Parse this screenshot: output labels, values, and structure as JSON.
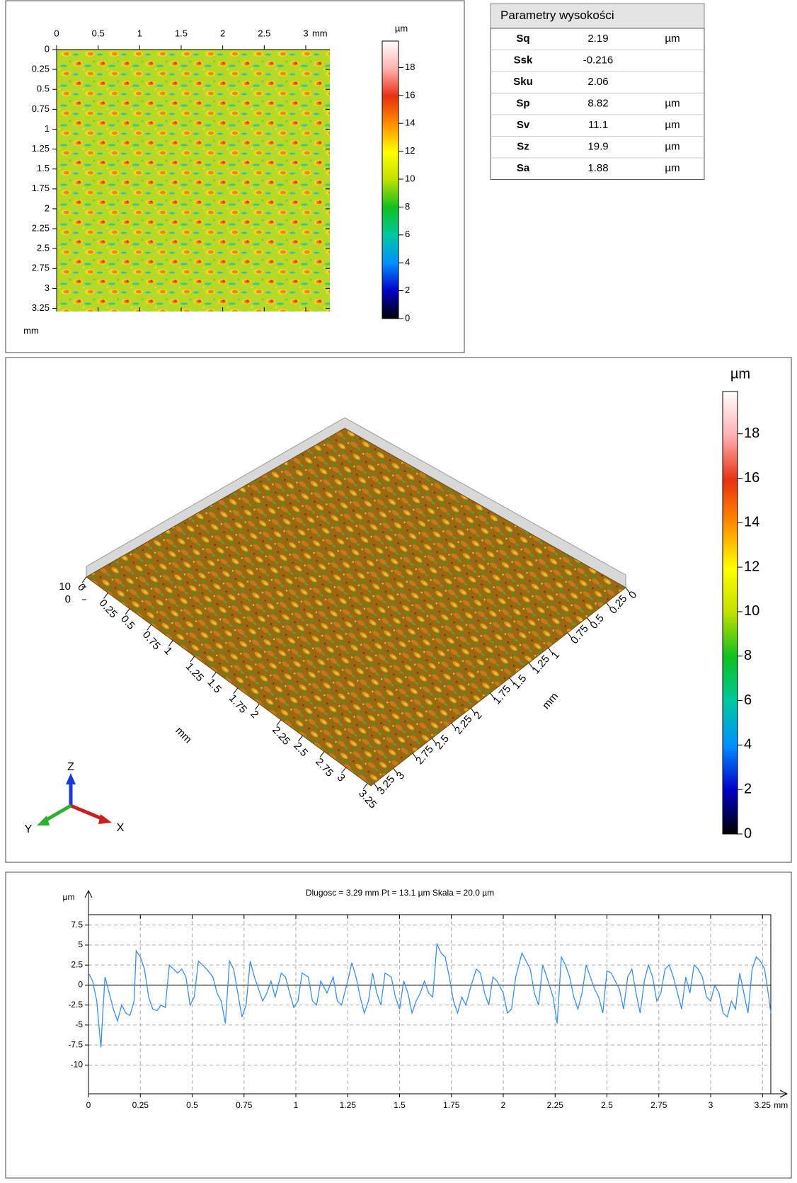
{
  "chart_data": [
    {
      "type": "heatmap",
      "x_unit": "mm",
      "y_unit": "mm",
      "xlim": [
        0,
        3.29
      ],
      "ylim": [
        0,
        3.29
      ],
      "xticks": [
        0,
        0.5,
        1,
        1.5,
        2,
        2.5,
        3
      ],
      "yticks": [
        0,
        0.25,
        0.5,
        0.75,
        1,
        1.25,
        1.5,
        1.75,
        2,
        2.25,
        2.5,
        2.75,
        3,
        3.25
      ],
      "colorbar": {
        "label": "µm",
        "zlim": [
          0,
          19.9
        ],
        "zticks": [
          0,
          2,
          4,
          6,
          8,
          10,
          12,
          14,
          16,
          18
        ],
        "colors": [
          "#000000",
          "#0000c8",
          "#0090ff",
          "#00c8a0",
          "#10c020",
          "#c0e000",
          "#ffff00",
          "#ff9000",
          "#e83010",
          "#ffb0b0",
          "#ffffff"
        ]
      }
    },
    {
      "type": "surface3d",
      "xlabel": "mm",
      "ylabel": "mm",
      "xlim": [
        0,
        3.29
      ],
      "ylim": [
        0,
        3.29
      ],
      "xticks": [
        0,
        0.25,
        0.5,
        0.75,
        1,
        1.25,
        1.5,
        1.75,
        2,
        2.25,
        2.5,
        2.75,
        3,
        3.25
      ],
      "yticks": [
        0,
        0.25,
        0.5,
        0.75,
        1,
        1.25,
        1.5,
        1.75,
        2,
        2.25,
        2.5,
        2.75,
        3,
        3.25
      ],
      "zlim": [
        0,
        19.9
      ],
      "zticks": [
        0,
        10
      ],
      "axes_triad": [
        "X",
        "Y",
        "Z"
      ],
      "colorbar": {
        "label": "µm",
        "zlim": [
          0,
          19.9
        ],
        "zticks": [
          0,
          2,
          4,
          6,
          8,
          10,
          12,
          14,
          16,
          18
        ],
        "colors": [
          "#000000",
          "#0000c8",
          "#0090ff",
          "#00c8a0",
          "#10c020",
          "#c0e000",
          "#ffff00",
          "#ff9000",
          "#e83010",
          "#ffb0b0",
          "#ffffff"
        ]
      }
    },
    {
      "type": "line",
      "title": "Dlugosc = 3.29 mm  Pt = 13.1 µm  Skala = 20.0 µm",
      "xlabel": "mm",
      "ylabel": "µm",
      "xlim": [
        0,
        3.29
      ],
      "ylim": [
        -13.6,
        8.8
      ],
      "xticks": [
        0,
        0.25,
        0.5,
        0.75,
        1,
        1.25,
        1.5,
        1.75,
        2,
        2.25,
        2.5,
        2.75,
        3,
        3.25
      ],
      "yticks": [
        7.5,
        5,
        2.5,
        0,
        -2.5,
        -5,
        -7.5,
        -10
      ],
      "grid": true,
      "x": [
        0,
        0.02,
        0.04,
        0.05,
        0.06,
        0.07,
        0.08,
        0.1,
        0.12,
        0.14,
        0.16,
        0.18,
        0.2,
        0.22,
        0.23,
        0.25,
        0.27,
        0.29,
        0.31,
        0.33,
        0.35,
        0.37,
        0.39,
        0.41,
        0.43,
        0.45,
        0.47,
        0.49,
        0.51,
        0.53,
        0.55,
        0.57,
        0.6,
        0.62,
        0.64,
        0.66,
        0.68,
        0.7,
        0.72,
        0.74,
        0.76,
        0.78,
        0.8,
        0.82,
        0.84,
        0.86,
        0.88,
        0.9,
        0.93,
        0.95,
        0.97,
        0.99,
        1.01,
        1.03,
        1.06,
        1.08,
        1.1,
        1.12,
        1.15,
        1.18,
        1.2,
        1.22,
        1.25,
        1.27,
        1.29,
        1.31,
        1.33,
        1.35,
        1.37,
        1.39,
        1.41,
        1.43,
        1.46,
        1.48,
        1.5,
        1.52,
        1.54,
        1.56,
        1.58,
        1.6,
        1.62,
        1.64,
        1.66,
        1.68,
        1.7,
        1.72,
        1.74,
        1.76,
        1.78,
        1.8,
        1.82,
        1.84,
        1.87,
        1.89,
        1.91,
        1.93,
        1.95,
        1.97,
        2,
        2.02,
        2.04,
        2.06,
        2.09,
        2.11,
        2.13,
        2.15,
        2.17,
        2.19,
        2.21,
        2.24,
        2.26,
        2.28,
        2.3,
        2.32,
        2.34,
        2.36,
        2.38,
        2.4,
        2.42,
        2.44,
        2.46,
        2.48,
        2.5,
        2.52,
        2.54,
        2.56,
        2.58,
        2.6,
        2.62,
        2.64,
        2.66,
        2.68,
        2.7,
        2.72,
        2.74,
        2.76,
        2.78,
        2.8,
        2.82,
        2.84,
        2.86,
        2.88,
        2.9,
        2.92,
        2.94,
        2.96,
        2.98,
        3,
        3.02,
        3.04,
        3.06,
        3.08,
        3.1,
        3.12,
        3.14,
        3.16,
        3.18,
        3.2,
        3.22,
        3.24,
        3.26,
        3.28,
        3.29
      ],
      "series": [
        {
          "color": "#3b8fe8",
          "values": [
            1.5,
            0.5,
            -2,
            -5,
            -7.8,
            -3,
            1,
            -1,
            -3,
            -4.5,
            -2.5,
            -3.5,
            -3.8,
            -2,
            4.3,
            3.5,
            2,
            -1.5,
            -3,
            -3.2,
            -2.5,
            -2.8,
            2.5,
            2,
            1.5,
            2,
            1,
            -2.5,
            -1.5,
            3,
            2.5,
            2,
            1,
            -1,
            -2,
            -4.8,
            3,
            2,
            -1,
            -4,
            -2.5,
            3,
            1,
            -0.5,
            -2,
            -1,
            0.5,
            -1.5,
            1.5,
            1,
            -1,
            -2.8,
            -2,
            1.5,
            1,
            -2,
            -2.5,
            0.5,
            -1,
            1,
            -2,
            -2.5,
            0.5,
            2.8,
            1,
            -1.5,
            -3.5,
            -2,
            1.5,
            -1,
            -2.5,
            1.5,
            1,
            -1.5,
            -3,
            0.5,
            -1,
            -3.5,
            -2,
            -1,
            0.5,
            -1,
            -1.5,
            5.2,
            4,
            3.5,
            1,
            -2,
            -3.5,
            -1.5,
            -2.5,
            -0.5,
            2,
            1.5,
            -1,
            -2.5,
            1,
            0.5,
            -1,
            -3.5,
            -3,
            1,
            4,
            3,
            2,
            -1,
            -2.5,
            2.5,
            1,
            -1.5,
            -4.8,
            3.5,
            2.5,
            1,
            -1.5,
            -3,
            -1,
            2.5,
            1,
            -0.5,
            -1.5,
            -3.5,
            1.8,
            1.5,
            0.5,
            -0.5,
            -3,
            1,
            2,
            -1,
            -3.5,
            0.5,
            2.5,
            1,
            -2,
            -1,
            2,
            2.5,
            1,
            -1,
            -3,
            1,
            -1,
            2.5,
            2,
            1,
            -1.5,
            -2,
            0,
            -1,
            -3.5,
            -4,
            -2,
            -3,
            1.5,
            -1,
            -3.5,
            2,
            3.5,
            3,
            2,
            -1.5,
            -3.5
          ]
        }
      ]
    }
  ],
  "table": {
    "title": "Parametry wysokości",
    "rows": [
      [
        "Sq",
        "2.19",
        "µm"
      ],
      [
        "Ssk",
        "-0.216"
      ],
      [
        "Sku",
        "2.06"
      ],
      [
        "Sp",
        "8.82",
        "µm"
      ],
      [
        "Sv",
        "11.1",
        "µm"
      ],
      [
        "Sz",
        "19.9",
        "µm"
      ],
      [
        "Sa",
        "1.88",
        "µm"
      ]
    ]
  }
}
